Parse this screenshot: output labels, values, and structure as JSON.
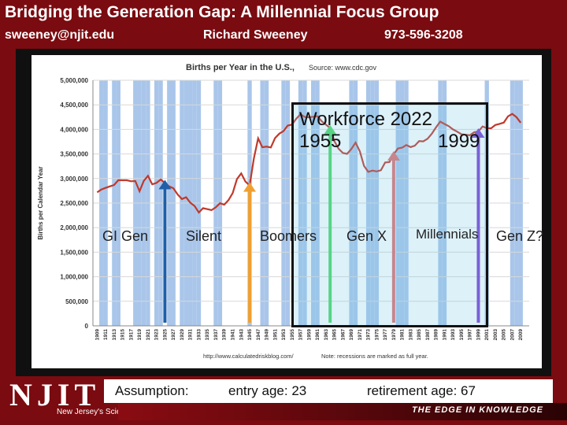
{
  "header": {
    "title": "Bridging the Generation Gap: A Millennial Focus Group",
    "email": "sweeney@njit.edu",
    "name": "Richard Sweeney",
    "phone": "973-596-3208"
  },
  "chart_data": {
    "type": "line",
    "title": "Births per Year in the U.S.,",
    "source": "Source: www.cdc.gov",
    "ylabel": "Births per Calendar Year",
    "xlabel": "",
    "footer_url": "http://www.calculatedriskblog.com/",
    "footer_note": "Note: recessions are marked as full year.",
    "ylim": [
      0,
      5000000
    ],
    "y_ticks": [
      "0",
      "500,000",
      "1,000,000",
      "1,500,000",
      "2,000,000",
      "2,500,000",
      "3,000,000",
      "3,500,000",
      "4,000,000",
      "4,500,000",
      "5,000,000"
    ],
    "x_ticks": [
      "1909",
      "1911",
      "1913",
      "1915",
      "1917",
      "1919",
      "1921",
      "1923",
      "1925",
      "1927",
      "1929",
      "1931",
      "1933",
      "1935",
      "1937",
      "1939",
      "1941",
      "1943",
      "1945",
      "1947",
      "1949",
      "1951",
      "1953",
      "1955",
      "1957",
      "1959",
      "1961",
      "1963",
      "1965",
      "1967",
      "1969",
      "1971",
      "1973",
      "1975",
      "1977",
      "1979",
      "1981",
      "1983",
      "1985",
      "1987",
      "1989",
      "1991",
      "1993",
      "1995",
      "1997",
      "1999",
      "2001",
      "2003",
      "2005",
      "2007",
      "2009"
    ],
    "series": [
      {
        "name": "",
        "color": "#c0392b",
        "x": [
          1909,
          1910,
          1911,
          1912,
          1913,
          1914,
          1915,
          1916,
          1917,
          1918,
          1919,
          1920,
          1921,
          1922,
          1923,
          1924,
          1925,
          1926,
          1927,
          1928,
          1929,
          1930,
          1931,
          1932,
          1933,
          1934,
          1935,
          1936,
          1937,
          1938,
          1939,
          1940,
          1941,
          1942,
          1943,
          1944,
          1945,
          1946,
          1947,
          1948,
          1949,
          1950,
          1951,
          1952,
          1953,
          1954,
          1955,
          1956,
          1957,
          1958,
          1959,
          1960,
          1961,
          1962,
          1963,
          1964,
          1965,
          1966,
          1967,
          1968,
          1969,
          1970,
          1971,
          1972,
          1973,
          1974,
          1975,
          1976,
          1977,
          1978,
          1979,
          1980,
          1981,
          1982,
          1983,
          1984,
          1985,
          1986,
          1987,
          1988,
          1989,
          1990,
          1991,
          1992,
          1993,
          1994,
          1995,
          1996,
          1997,
          1998,
          1999,
          2000,
          2001,
          2002,
          2003,
          2004,
          2005,
          2006,
          2007,
          2008,
          2009
        ],
        "values": [
          2718000,
          2777000,
          2809000,
          2840000,
          2869000,
          2966000,
          2965000,
          2964000,
          2944000,
          2948000,
          2740000,
          2950000,
          3055000,
          2882000,
          2910000,
          2979000,
          2909000,
          2839000,
          2802000,
          2674000,
          2582000,
          2618000,
          2506000,
          2440000,
          2307000,
          2396000,
          2377000,
          2355000,
          2413000,
          2496000,
          2466000,
          2559000,
          2703000,
          2989000,
          3104000,
          2939000,
          2858000,
          3411000,
          3817000,
          3637000,
          3649000,
          3632000,
          3823000,
          3913000,
          3965000,
          4078000,
          4097000,
          4218000,
          4308000,
          4255000,
          4245000,
          4258000,
          4268000,
          4167000,
          4098000,
          4027000,
          3760000,
          3606000,
          3521000,
          3502000,
          3600000,
          3731000,
          3556000,
          3258000,
          3137000,
          3160000,
          3144000,
          3168000,
          3327000,
          3333000,
          3494000,
          3612000,
          3629000,
          3681000,
          3639000,
          3669000,
          3761000,
          3757000,
          3809000,
          3910000,
          4041000,
          4158000,
          4111000,
          4065000,
          4000000,
          3953000,
          3900000,
          3891000,
          3881000,
          3942000,
          3959000,
          4059000,
          4026000,
          4022000,
          4090000,
          4112000,
          4138000,
          4266000,
          4316000,
          4248000,
          4136000
        ]
      }
    ],
    "recession_years": [
      1910,
      1911,
      1913,
      1914,
      1918,
      1919,
      1920,
      1921,
      1923,
      1924,
      1926,
      1927,
      1929,
      1930,
      1931,
      1932,
      1933,
      1937,
      1938,
      1945,
      1948,
      1949,
      1953,
      1954,
      1957,
      1958,
      1960,
      1961,
      1969,
      1970,
      1973,
      1974,
      1975,
      1980,
      1981,
      1982,
      1990,
      1991,
      2001,
      2007,
      2008,
      2009
    ],
    "generations": [
      {
        "label": "GI Gen",
        "year": 1925,
        "color": "#1f5fa8"
      },
      {
        "label": "Silent",
        "year": 1945,
        "color": "#f0a030"
      },
      {
        "label": "Boomers",
        "year": 1964,
        "color": "#4cd964"
      },
      {
        "label": "Gen X",
        "year": 1979,
        "color": "#e07070"
      },
      {
        "label": "Millennials",
        "year": 1999,
        "color": "#7a3fd0"
      },
      {
        "label": "Gen Z?",
        "year": 2010,
        "color": "#7a3fd0"
      }
    ],
    "annotation": {
      "title": "Workforce 2022",
      "start_year_label": "1955",
      "end_year_label": "1999"
    }
  },
  "footer": {
    "logo": "NJIT",
    "university": "New Jersey's Science & Technology University",
    "tagline": "THE EDGE IN KNOWLEDGE",
    "assumption_label": "Assumption:",
    "entry_age": "entry age: 23",
    "retirement_age": "retirement age: 67"
  }
}
